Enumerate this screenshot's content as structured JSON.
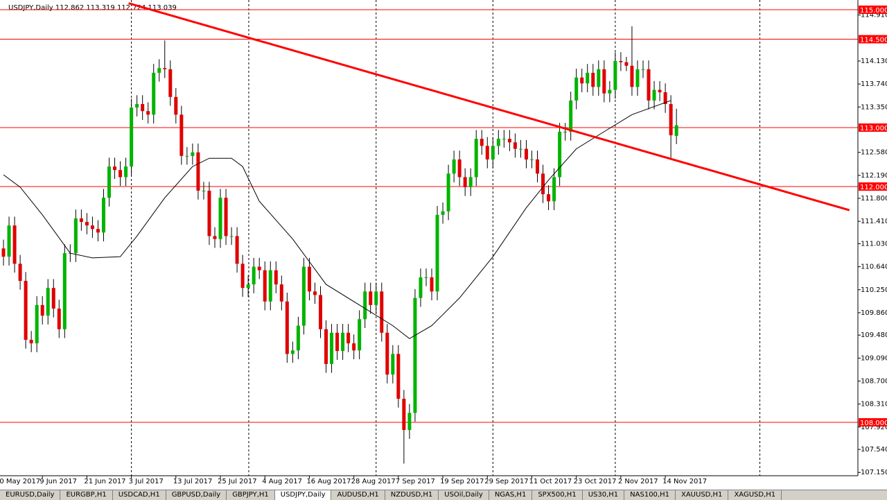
{
  "chart_data": {
    "type": "candlestick",
    "title": "USDJPY,Daily  112.862 113.319 112.724 113.039",
    "open": [
      110.95,
      110.81,
      111.34,
      110.69,
      110.4,
      109.4,
      109.34,
      109.99,
      109.81,
      110.28,
      109.93,
      109.58,
      110.87,
      110.87,
      111.46,
      111.4,
      111.34,
      111.28,
      111.22,
      111.81,
      112.34,
      112.28,
      112.16,
      112.34,
      113.34,
      113.4,
      113.28,
      113.22,
      113.93,
      114.01,
      113.99,
      113.52,
      113.22,
      112.52,
      112.52,
      112.58,
      111.93,
      111.93,
      111.16,
      111.11,
      111.81,
      111.16,
      111.16,
      110.69,
      110.28,
      110.34,
      110.64,
      110.58,
      110.05,
      110.58,
      110.34,
      110.05,
      109.16,
      109.22,
      109.64,
      110.64,
      110.22,
      110.16,
      109.58,
      108.99,
      109.52,
      109.21,
      109.52,
      109.34,
      109.22,
      109.75,
      110.22,
      109.99,
      110.22,
      109.52,
      108.81,
      109.16,
      108.4,
      107.87,
      108.16,
      110.11,
      110.46,
      110.46,
      110.22,
      111.52,
      111.58,
      112.22,
      112.46,
      112.16,
      111.99,
      112.16,
      112.81,
      112.69,
      112.46,
      112.69,
      112.81,
      112.81,
      112.75,
      112.64,
      112.64,
      112.46,
      112.46,
      112.22,
      111.87,
      111.75,
      112.16,
      112.93,
      112.93,
      113.46,
      113.85,
      113.75,
      113.93,
      113.69,
      113.99,
      113.58,
      113.64,
      114.13,
      114.11,
      114.05,
      113.69,
      113.99,
      113.99,
      113.46,
      113.64,
      113.6,
      113.4,
      112.86
    ],
    "high": [
      111.1,
      111.49,
      111.49,
      110.84,
      110.55,
      109.55,
      110.14,
      110.14,
      110.43,
      110.43,
      110.08,
      111.02,
      111.02,
      111.61,
      111.61,
      111.55,
      111.49,
      111.43,
      111.96,
      112.49,
      112.49,
      112.43,
      112.49,
      113.49,
      113.55,
      113.55,
      113.43,
      114.08,
      114.16,
      114.48,
      114.14,
      113.67,
      113.37,
      112.67,
      112.73,
      112.73,
      112.08,
      112.08,
      111.31,
      111.96,
      111.96,
      111.31,
      111.31,
      110.84,
      110.49,
      110.79,
      110.79,
      110.73,
      110.73,
      110.73,
      110.49,
      110.2,
      109.37,
      109.79,
      110.79,
      110.79,
      110.37,
      110.31,
      109.73,
      109.67,
      109.67,
      109.67,
      109.67,
      109.49,
      109.9,
      110.37,
      110.37,
      110.37,
      110.37,
      109.67,
      109.31,
      109.31,
      108.55,
      108.31,
      110.26,
      110.61,
      110.61,
      110.61,
      111.67,
      111.73,
      112.37,
      112.61,
      112.61,
      112.31,
      112.31,
      112.96,
      112.96,
      112.84,
      112.84,
      112.96,
      112.96,
      112.96,
      112.9,
      112.79,
      112.79,
      112.61,
      112.61,
      112.37,
      112.02,
      112.31,
      113.08,
      113.08,
      113.61,
      114.0,
      114.0,
      114.08,
      114.08,
      114.14,
      114.14,
      113.79,
      114.28,
      114.28,
      114.2,
      114.72,
      114.14,
      114.14,
      114.14,
      113.79,
      113.79,
      113.75,
      113.55,
      113.32
    ],
    "low": [
      110.66,
      110.66,
      110.54,
      110.25,
      109.25,
      109.19,
      109.19,
      109.66,
      109.66,
      109.78,
      109.43,
      109.43,
      110.72,
      110.72,
      111.25,
      111.19,
      111.13,
      111.07,
      111.07,
      111.66,
      112.13,
      112.01,
      112.01,
      112.19,
      113.19,
      113.13,
      113.07,
      113.07,
      113.78,
      113.84,
      113.37,
      113.07,
      112.37,
      112.37,
      112.37,
      111.78,
      111.78,
      111.01,
      110.96,
      110.96,
      111.01,
      111.01,
      110.54,
      110.13,
      110.13,
      110.19,
      110.43,
      109.9,
      109.9,
      110.19,
      109.9,
      109.01,
      109.01,
      109.07,
      109.49,
      110.07,
      110.01,
      109.43,
      108.84,
      108.84,
      109.06,
      109.06,
      109.19,
      109.07,
      109.07,
      109.6,
      109.84,
      109.84,
      109.37,
      108.66,
      108.66,
      108.25,
      107.3,
      107.72,
      108.01,
      109.96,
      110.31,
      110.07,
      110.07,
      111.37,
      111.43,
      112.07,
      112.01,
      111.84,
      111.84,
      112.01,
      112.54,
      112.31,
      112.31,
      112.54,
      112.66,
      112.6,
      112.49,
      112.49,
      112.31,
      112.31,
      112.07,
      111.72,
      111.6,
      111.6,
      112.01,
      112.78,
      112.78,
      113.31,
      113.6,
      113.6,
      113.54,
      113.54,
      113.43,
      113.43,
      113.49,
      113.96,
      113.96,
      113.54,
      113.54,
      113.84,
      113.31,
      113.31,
      113.45,
      113.25,
      112.47,
      112.72
    ],
    "close": [
      110.81,
      111.34,
      110.69,
      110.4,
      109.4,
      109.34,
      109.99,
      109.81,
      110.28,
      109.93,
      109.58,
      110.87,
      110.87,
      111.46,
      111.4,
      111.34,
      111.28,
      111.22,
      111.81,
      112.34,
      112.28,
      112.16,
      112.34,
      113.34,
      113.4,
      113.28,
      113.22,
      113.93,
      114.01,
      113.99,
      113.52,
      113.22,
      112.52,
      112.52,
      112.58,
      111.93,
      111.93,
      111.16,
      111.11,
      111.81,
      111.16,
      111.16,
      110.69,
      110.28,
      110.34,
      110.64,
      110.58,
      110.05,
      110.58,
      110.34,
      110.05,
      109.16,
      109.22,
      109.64,
      110.64,
      110.22,
      110.16,
      109.58,
      108.99,
      109.52,
      109.21,
      109.52,
      109.34,
      109.22,
      109.75,
      110.22,
      109.99,
      110.22,
      109.52,
      108.81,
      109.16,
      108.4,
      107.87,
      108.16,
      110.11,
      110.46,
      110.46,
      110.22,
      111.52,
      111.58,
      112.22,
      112.46,
      112.16,
      111.99,
      112.16,
      112.81,
      112.69,
      112.46,
      112.69,
      112.81,
      112.81,
      112.75,
      112.64,
      112.64,
      112.46,
      112.46,
      112.22,
      111.87,
      111.75,
      112.16,
      112.93,
      112.93,
      113.46,
      113.85,
      113.75,
      113.93,
      113.69,
      113.99,
      113.58,
      113.64,
      114.13,
      114.11,
      114.05,
      113.69,
      113.99,
      113.99,
      113.46,
      113.64,
      113.6,
      113.4,
      112.87,
      113.04
    ],
    "up_color": "#00b400",
    "down_color": "#e00000",
    "wick_color": "#000000",
    "moving_average": {
      "color": "#000000",
      "x": [
        0,
        3,
        7,
        12,
        16,
        21,
        24,
        29,
        34,
        37,
        41,
        43,
        46,
        52,
        58,
        64,
        70,
        73,
        77,
        82,
        88,
        94,
        98,
        103,
        109,
        113,
        120
      ],
      "values": [
        112.2,
        111.99,
        111.52,
        110.87,
        110.79,
        110.81,
        111.16,
        111.81,
        112.34,
        112.48,
        112.48,
        112.34,
        111.75,
        111.11,
        110.34,
        109.99,
        109.64,
        109.42,
        109.64,
        110.11,
        110.81,
        111.64,
        112.11,
        112.64,
        112.99,
        113.22,
        113.46
      ]
    },
    "trend_line": {
      "color": "#ff0000",
      "x": [
        22.5,
        152.1
      ],
      "values": [
        115.11,
        111.6
      ]
    },
    "levels": {
      "color": "#ff0000",
      "values": [
        {
          "value": 115,
          "label": "115.000"
        },
        {
          "value": 114.5,
          "label": "114.500"
        },
        {
          "value": 113,
          "label": "113.000"
        },
        {
          "value": 112,
          "label": "112.000"
        },
        {
          "value": 108,
          "label": "108.000"
        }
      ]
    },
    "ylim": [
      107.094,
      115.165
    ],
    "yticks": [
      {
        "value": 114.91,
        "label": "114.910"
      },
      {
        "value": 114.13,
        "label": "114.130"
      },
      {
        "value": 113.74,
        "label": "113.740"
      },
      {
        "value": 113.35,
        "label": "113.350"
      },
      {
        "value": 112.58,
        "label": "112.580"
      },
      {
        "value": 112.19,
        "label": "112.190"
      },
      {
        "value": 111.8,
        "label": "111.800"
      },
      {
        "value": 111.41,
        "label": "111.410"
      },
      {
        "value": 111.03,
        "label": "111.030"
      },
      {
        "value": 110.64,
        "label": "110.640"
      },
      {
        "value": 110.25,
        "label": "110.250"
      },
      {
        "value": 109.86,
        "label": "109.860"
      },
      {
        "value": 109.48,
        "label": "109.480"
      },
      {
        "value": 109.09,
        "label": "109.090"
      },
      {
        "value": 108.7,
        "label": "108.700"
      },
      {
        "value": 108.31,
        "label": "108.310"
      },
      {
        "value": 107.92,
        "label": "107.920"
      },
      {
        "value": 107.54,
        "label": "107.540"
      },
      {
        "value": 107.15,
        "label": "107.150"
      }
    ],
    "xlim": [
      -0.625,
      153.625
    ],
    "xticks": [
      {
        "value": -1,
        "label": "30 May 2017"
      },
      {
        "value": 7,
        "label": "9 Jun 2017"
      },
      {
        "value": 15,
        "label": "21 Jun 2017"
      },
      {
        "value": 23,
        "label": "3 Jul 2017"
      },
      {
        "value": 31,
        "label": "13 Jul 2017"
      },
      {
        "value": 39,
        "label": "25 Jul 2017"
      },
      {
        "value": 47,
        "label": "4 Aug 2017"
      },
      {
        "value": 55,
        "label": "16 Aug 2017"
      },
      {
        "value": 63,
        "label": "28 Aug 2017"
      },
      {
        "value": 71,
        "label": "7 Sep 2017"
      },
      {
        "value": 79,
        "label": "19 Sep 2017"
      },
      {
        "value": 87,
        "label": "29 Sep 2017"
      },
      {
        "value": 95,
        "label": "11 Oct 2017"
      },
      {
        "value": 103,
        "label": "23 Oct 2017"
      },
      {
        "value": 111,
        "label": "2 Nov 2017"
      },
      {
        "value": 119,
        "label": "14 Nov 2017"
      }
    ],
    "grid_x": [
      23,
      44.1,
      67,
      88,
      110,
      136
    ],
    "grid": true
  },
  "tabs": [
    "EURUSD,Daily",
    "EURGBP,H1",
    "USDCAD,H1",
    "GBPUSD,Daily",
    "GBPJPY,H1",
    "USDJPY,Daily",
    "AUDUSD,H1",
    "NZDUSD,H1",
    "USOil,Daily",
    "NGAS,H1",
    "SPX500,H1",
    "US30,H1",
    "NAS100,H1",
    "XAUUSD,H1",
    "XAGUSD,H1"
  ],
  "active_tab": 5
}
